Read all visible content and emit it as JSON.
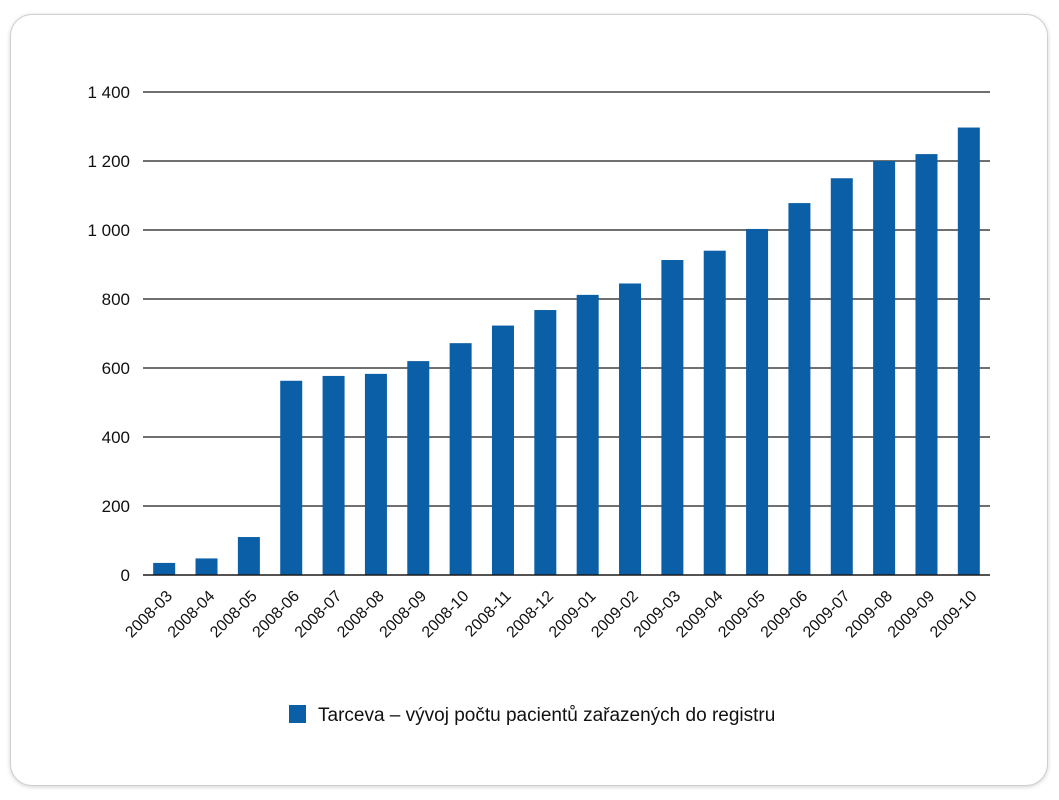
{
  "chart_data": {
    "type": "bar",
    "categories": [
      "2008-03",
      "2008-04",
      "2008-05",
      "2008-06",
      "2008-07",
      "2008-08",
      "2008-09",
      "2008-10",
      "2008-11",
      "2008-12",
      "2009-01",
      "2009-02",
      "2009-03",
      "2009-04",
      "2009-05",
      "2009-06",
      "2009-07",
      "2009-08",
      "2009-09",
      "2009-10"
    ],
    "series": [
      {
        "name": "Tarceva – vývoj počtu pacientů zařazených do registru",
        "values": [
          35,
          48,
          110,
          563,
          577,
          583,
          620,
          672,
          723,
          768,
          812,
          845,
          913,
          940,
          1003,
          1078,
          1150,
          1200,
          1220,
          1297
        ]
      }
    ],
    "ylim": [
      0,
      1400
    ],
    "y_ticks": [
      0,
      200,
      400,
      600,
      800,
      1000,
      1200,
      1400
    ],
    "y_tick_labels": [
      "0",
      "200",
      "400",
      "600",
      "800",
      "1 000",
      "1 200",
      "1 400"
    ],
    "grid": true,
    "legend_position": "bottom"
  },
  "colors": {
    "bar": "#0b5fa6",
    "grid": "#1a1a1a"
  }
}
